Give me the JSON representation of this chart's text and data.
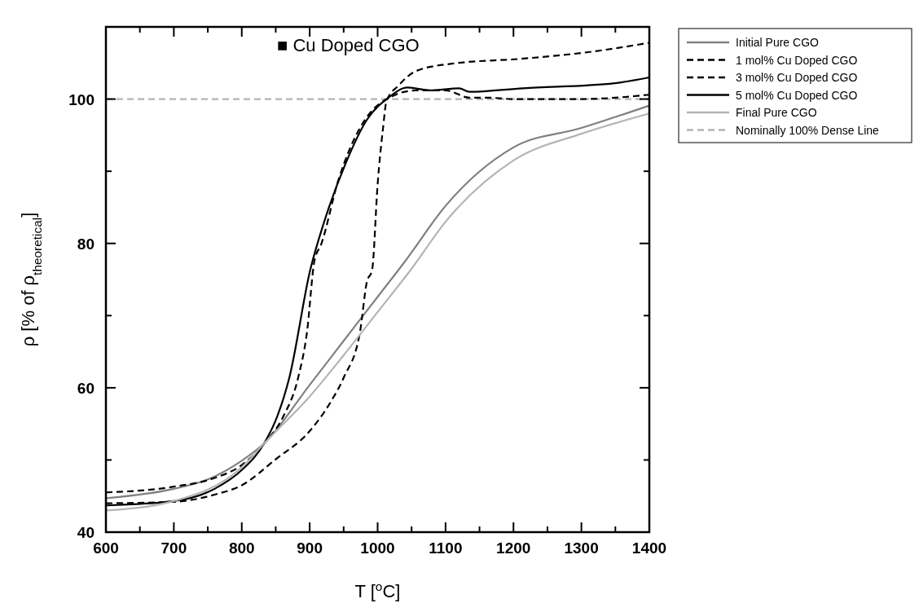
{
  "chart_data": {
    "type": "line",
    "xlabel": "T [$^{o}$C]",
    "ylabel": "ρ [% of ρ$_{theoretical}$]",
    "annotations": [
      "■ Cu Doped CGO"
    ],
    "xlim": [
      600,
      1400
    ],
    "ylim": [
      40,
      110
    ],
    "xticks": [
      600,
      {
        "value": 650,
        "label": null
      },
      700,
      {
        "value": 750,
        "label": null
      },
      800,
      {
        "value": 850,
        "label": null
      },
      900,
      {
        "value": 950,
        "label": null
      },
      1000,
      {
        "value": 1050,
        "label": null
      },
      1100,
      {
        "value": 1150,
        "label": null
      },
      1200,
      {
        "value": 1250,
        "label": null
      },
      1300,
      {
        "value": 1350,
        "label": null
      },
      1400
    ],
    "yticks": [
      40,
      {
        "value": 50,
        "label": null
      },
      60,
      {
        "value": 70,
        "label": null
      },
      80,
      {
        "value": 90,
        "label": null
      },
      100
    ],
    "grid": false,
    "legend": "top right",
    "ref_lines": [
      {
        "axis": "y",
        "value": 100,
        "label": "Nominally 100% Dense Line",
        "color": "#b4b4b4",
        "line_style": "dashed"
      }
    ],
    "series": [
      {
        "name": "Initial Pure CGO",
        "color": "#808080",
        "line_style": "solid",
        "x": [
          600,
          700,
          750,
          800,
          833,
          900,
          950,
          1000,
          1041,
          1100,
          1200,
          1300,
          1400
        ],
        "values": [
          44.7,
          46.0,
          47.3,
          49.9,
          52.3,
          60.4,
          66.5,
          72.6,
          77.6,
          85.2,
          93.3,
          96.0,
          99.1
        ]
      },
      {
        "name": "1 mol% Cu Doped CGO",
        "color": "#000000",
        "line_style": "dashed",
        "x": [
          600,
          700,
          760,
          800,
          850,
          900,
          930,
          950,
          974,
          984,
          992,
          1000,
          1008,
          1013,
          1031,
          1057,
          1109,
          1214,
          1318,
          1400
        ],
        "values": [
          44.0,
          44.2,
          45.2,
          46.5,
          50.1,
          54.0,
          57.9,
          61.4,
          67.7,
          74.6,
          76.4,
          88.2,
          96.0,
          99.7,
          101.9,
          103.9,
          104.9,
          105.6,
          106.6,
          107.8
        ]
      },
      {
        "name": "3 mol% Cu Doped CGO",
        "color": "#000000",
        "line_style": "dashed",
        "x": [
          600,
          700,
          760,
          800,
          833,
          861,
          883,
          896,
          907,
          917,
          942,
          974,
          1005,
          1057,
          1100,
          1135,
          1161,
          1200,
          1300,
          1400
        ],
        "values": [
          45.5,
          46.3,
          47.5,
          49.3,
          52.3,
          56.0,
          61.4,
          67.7,
          77.6,
          79.9,
          88.7,
          96.0,
          99.5,
          101.2,
          101.2,
          100.2,
          100.2,
          100.0,
          100.0,
          100.6
        ]
      },
      {
        "name": "5 mol% Cu Doped CGO",
        "color": "#000000",
        "line_style": "solid",
        "x": [
          600,
          700,
          760,
          800,
          833,
          850,
          870,
          901,
          921,
          953,
          984,
          1016,
          1044,
          1078,
          1120,
          1135,
          1214,
          1349,
          1400
        ],
        "values": [
          43.7,
          44.3,
          46.0,
          48.6,
          52.3,
          55.5,
          61.4,
          76.4,
          82.9,
          91.1,
          97.1,
          100.2,
          101.6,
          101.2,
          101.5,
          101.0,
          101.5,
          102.2,
          103.0
        ]
      },
      {
        "name": "Final Pure CGO",
        "color": "#b4b4b4",
        "line_style": "solid",
        "x": [
          600,
          700,
          800,
          833,
          900,
          950,
          1000,
          1050,
          1100,
          1200,
          1300,
          1400
        ],
        "values": [
          43.0,
          44.3,
          49.0,
          52.3,
          58.8,
          64.5,
          70.5,
          76.5,
          83.0,
          91.5,
          95.2,
          98.0
        ]
      }
    ]
  }
}
